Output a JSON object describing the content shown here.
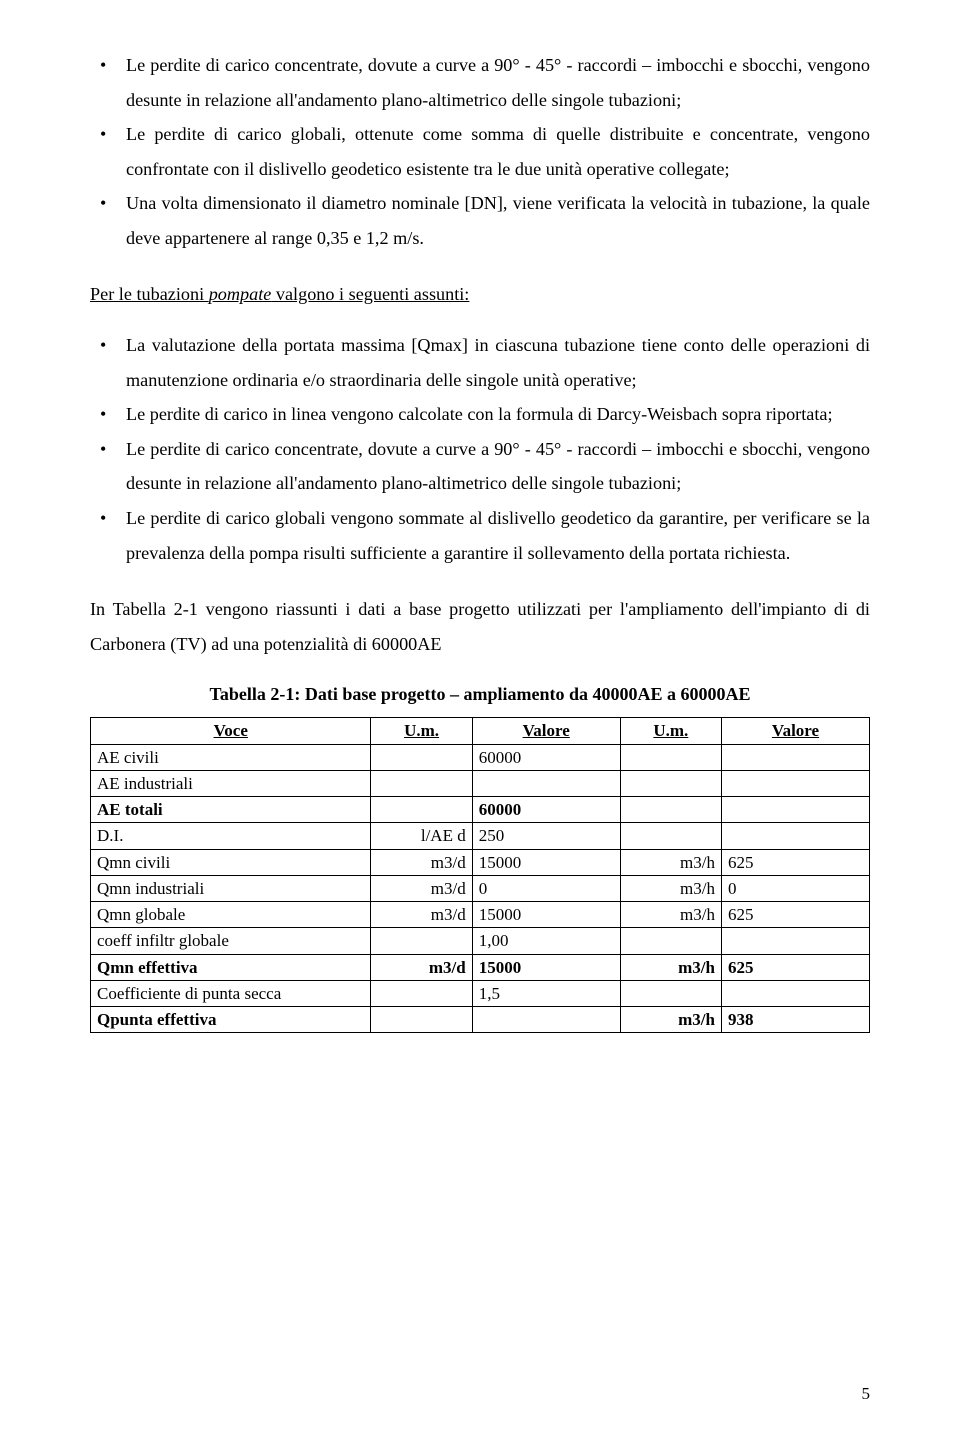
{
  "listA": {
    "item1": "Le perdite di carico concentrate, dovute a curve a 90° - 45° - raccordi – imbocchi e sbocchi, vengono desunte in relazione all'andamento plano-altimetrico delle singole tubazioni;",
    "item2": "Le perdite di carico globali, ottenute come somma di quelle distribuite e concentrate, vengono confrontate con il dislivello geodetico esistente tra le due unità operative collegate;",
    "item3": "Una volta dimensionato il diametro nominale [DN], viene verificata la velocità in tubazione, la quale deve appartenere al range  0,35 e 1,2 m/s."
  },
  "intro2_a": "Per le tubazioni ",
  "intro2_b_it": "pompate",
  "intro2_c": " valgono i seguenti assunti:",
  "listB": {
    "item1": "La valutazione della portata massima [Qmax] in ciascuna tubazione tiene conto delle operazioni di manutenzione ordinaria e/o straordinaria delle singole unità operative;",
    "item2": "Le perdite di carico in linea vengono calcolate con la formula di Darcy-Weisbach sopra riportata;",
    "item3": "Le perdite di carico concentrate, dovute a curve a 90° - 45° - raccordi – imbocchi e sbocchi, vengono desunte in relazione all'andamento plano-altimetrico delle singole tubazioni;",
    "item4": "Le perdite di carico globali vengono sommate al dislivello geodetico da garantire, per verificare se la prevalenza della pompa risulti sufficiente a garantire il sollevamento della portata richiesta."
  },
  "afterList": "In Tabella 2-1 vengono riassunti i dati a base progetto utilizzati per l'ampliamento dell'impianto di di Carbonera (TV) ad una potenzialità di 60000AE",
  "tableCaption": "Tabella 2-1: Dati base progetto – ampliamento da 40000AE a 60000AE",
  "table": {
    "headers": {
      "h1": "Voce",
      "h2": "U.m.",
      "h3": "Valore",
      "h4": "U.m.",
      "h5": "Valore"
    },
    "colWidths": [
      "36%",
      "13%",
      "19%",
      "13%",
      "19%"
    ],
    "rows": [
      {
        "bold": false,
        "c1": "AE civili",
        "c2": "",
        "c3": "60000",
        "c4": "",
        "c5": ""
      },
      {
        "bold": false,
        "c1": "AE industriali",
        "c2": "",
        "c3": "",
        "c4": "",
        "c5": ""
      },
      {
        "bold": true,
        "c1": "AE totali",
        "c2": "",
        "c3": "60000",
        "c4": "",
        "c5": ""
      },
      {
        "bold": false,
        "c1": "D.I.",
        "c2": "l/AE d",
        "c3": "250",
        "c4": "",
        "c5": ""
      },
      {
        "bold": false,
        "c1": "Qmn civili",
        "c2": "m3/d",
        "c3": "15000",
        "c4": "m3/h",
        "c5": "625"
      },
      {
        "bold": false,
        "c1": "Qmn industriali",
        "c2": "m3/d",
        "c3": "0",
        "c4": "m3/h",
        "c5": "0"
      },
      {
        "bold": false,
        "c1": "Qmn globale",
        "c2": "m3/d",
        "c3": "15000",
        "c4": "m3/h",
        "c5": "625"
      },
      {
        "bold": false,
        "c1": "coeff infiltr globale",
        "c2": "",
        "c3": "1,00",
        "c4": "",
        "c5": ""
      },
      {
        "bold": true,
        "c1": "Qmn effettiva",
        "c2": "m3/d",
        "c3": "15000",
        "c4": "m3/h",
        "c5": "625"
      },
      {
        "bold": false,
        "c1": "Coefficiente di punta secca",
        "c2": "",
        "c3": "1,5",
        "c4": "",
        "c5": ""
      },
      {
        "bold": true,
        "c1": "Qpunta effettiva",
        "c2": "",
        "c3": "",
        "c4": "m3/h",
        "c5": "938"
      }
    ]
  },
  "pageNumber": "5"
}
